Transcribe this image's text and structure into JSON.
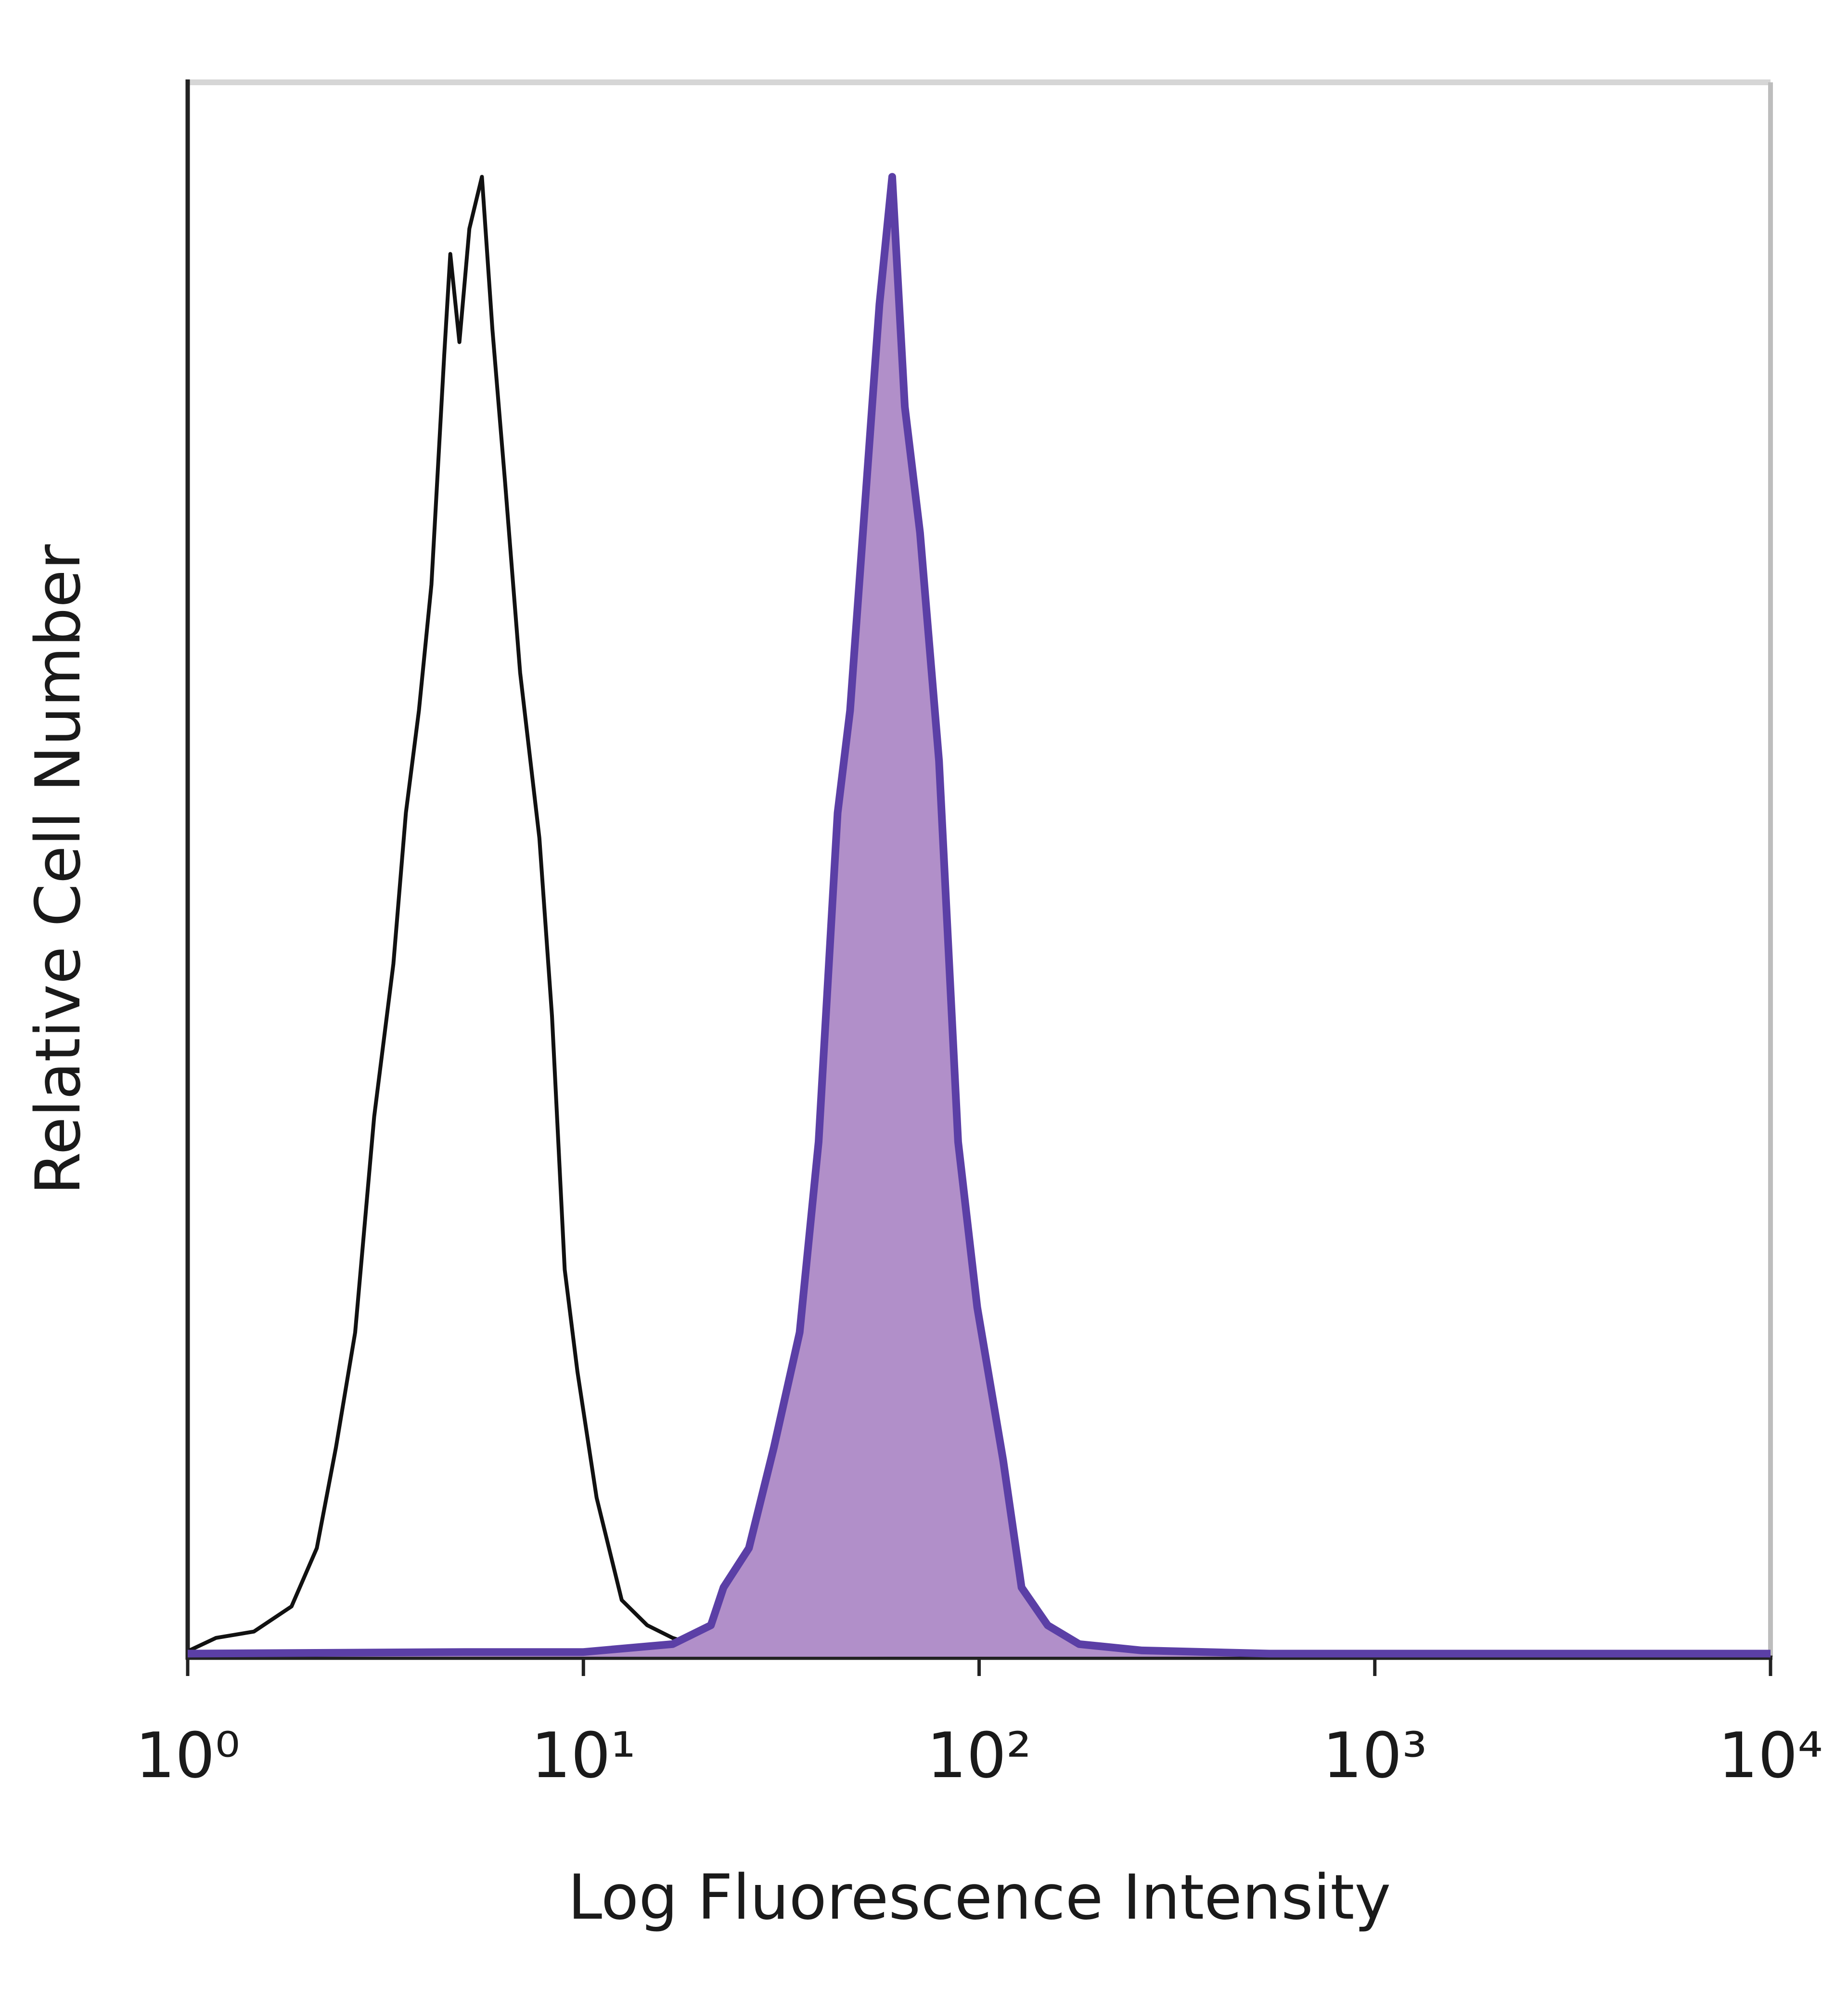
{
  "chart_data": {
    "type": "area",
    "xlabel": "Log Fluorescence Intensity",
    "ylabel": "Relative Cell Number",
    "xscale": "log",
    "xlim": [
      1,
      10000
    ],
    "xticks": [
      {
        "value": 1,
        "label": "10⁰"
      },
      {
        "value": 10,
        "label": "10¹"
      },
      {
        "value": 100,
        "label": "10²"
      },
      {
        "value": 1000,
        "label": "10³"
      },
      {
        "value": 10000,
        "label": "10⁴"
      }
    ],
    "ylim": [
      0,
      100
    ],
    "series": [
      {
        "color": "#111111",
        "x": [
          1.01,
          1.18,
          1.47,
          1.83,
          2.12,
          2.37,
          2.65,
          2.96,
          3.31,
          3.56,
          3.84,
          4.13,
          4.45,
          4.61,
          4.86,
          5.15,
          5.54,
          5.89,
          6.34,
          6.92,
          7.74,
          8.33,
          8.97,
          9.66,
          10.8,
          12.5,
          14.5,
          16.8,
          21.0,
          28.2,
          59.0,
          10000
        ],
        "values": [
          0.4,
          1.2,
          1.6,
          3.2,
          6.9,
          13.3,
          20.6,
          34.3,
          44,
          53.6,
          60.1,
          68.1,
          82.7,
          89.1,
          83.5,
          90.7,
          94,
          84.3,
          74.6,
          62.5,
          52,
          40.7,
          24.6,
          18.1,
          10.1,
          3.6,
          2,
          1.2,
          0.4,
          0.2,
          0.1,
          0.1
        ]
      },
      {
        "color": "#5b3fa6",
        "fill": "#b18fc9",
        "x": [
          1,
          5,
          10,
          16.8,
          21.0,
          22.6,
          26.2,
          30.3,
          35.2,
          39.3,
          43.9,
          47.2,
          52.8,
          56.0,
          60.3,
          64.9,
          70.9,
          79.2,
          88.5,
          98.9,
          115,
          128,
          149,
          179,
          258,
          541,
          10000
        ],
        "values": [
          0.2,
          0.3,
          0.3,
          0.8,
          2,
          4.4,
          6.9,
          13.3,
          20.6,
          32.7,
          53.6,
          60.1,
          77,
          85.9,
          94,
          79.4,
          71.4,
          56.9,
          32.7,
          22.2,
          12.5,
          4.4,
          2,
          0.8,
          0.4,
          0.2,
          0.2
        ]
      }
    ]
  }
}
